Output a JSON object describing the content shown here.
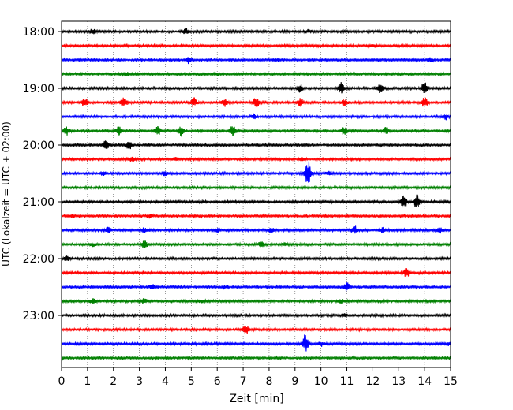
{
  "chart_data": {
    "type": "line",
    "title": "",
    "xlabel": "Zeit  [min]",
    "ylabel": "UTC (Lokalzeit = UTC + 02:00)",
    "xlim": [
      0,
      15
    ],
    "x_ticks": [
      "0",
      "1",
      "2",
      "3",
      "4",
      "5",
      "6",
      "7",
      "8",
      "9",
      "10",
      "11",
      "12",
      "13",
      "14",
      "15"
    ],
    "y_ticks": [
      "18:00",
      "19:00",
      "20:00",
      "21:00",
      "22:00",
      "23:00"
    ],
    "grid": "vertical dotted",
    "trace_colors": [
      "#000000",
      "#ff0000",
      "#0000ff",
      "#008000"
    ],
    "traces": [
      {
        "start": "18:00",
        "color": "#000000",
        "events": [
          [
            1.2,
            3
          ],
          [
            4.8,
            4
          ],
          [
            9.5,
            2
          ]
        ]
      },
      {
        "start": "18:15",
        "color": "#ff0000",
        "events": [
          [
            12.0,
            2
          ]
        ]
      },
      {
        "start": "18:30",
        "color": "#0000ff",
        "events": [
          [
            4.9,
            4
          ],
          [
            8.3,
            2
          ],
          [
            14.2,
            2
          ]
        ]
      },
      {
        "start": "18:45",
        "color": "#008000",
        "events": [
          [
            2.5,
            2
          ],
          [
            6.0,
            2
          ]
        ]
      },
      {
        "start": "19:00",
        "color": "#000000",
        "events": [
          [
            9.2,
            5
          ],
          [
            10.8,
            7
          ],
          [
            12.3,
            6
          ],
          [
            14.0,
            8
          ]
        ]
      },
      {
        "start": "19:15",
        "color": "#ff0000",
        "events": [
          [
            0.9,
            5
          ],
          [
            2.4,
            6
          ],
          [
            5.1,
            6
          ],
          [
            6.3,
            5
          ],
          [
            7.5,
            7
          ],
          [
            9.2,
            5
          ],
          [
            10.9,
            4
          ],
          [
            14.0,
            6
          ]
        ]
      },
      {
        "start": "19:30",
        "color": "#0000ff",
        "events": [
          [
            7.4,
            3
          ],
          [
            14.8,
            3
          ]
        ]
      },
      {
        "start": "19:45",
        "color": "#008000",
        "events": [
          [
            0.2,
            5
          ],
          [
            2.2,
            5
          ],
          [
            3.7,
            6
          ],
          [
            4.6,
            7
          ],
          [
            6.6,
            6
          ],
          [
            10.9,
            6
          ],
          [
            12.5,
            4
          ]
        ]
      },
      {
        "start": "20:00",
        "color": "#000000",
        "events": [
          [
            1.7,
            6
          ],
          [
            2.6,
            5
          ]
        ]
      },
      {
        "start": "20:15",
        "color": "#ff0000",
        "events": [
          [
            2.7,
            3
          ],
          [
            4.4,
            2
          ],
          [
            9.3,
            2
          ]
        ]
      },
      {
        "start": "20:30",
        "color": "#0000ff",
        "events": [
          [
            1.6,
            2
          ],
          [
            4.0,
            2
          ],
          [
            9.5,
            16
          ],
          [
            10.3,
            2
          ]
        ]
      },
      {
        "start": "20:45",
        "color": "#008000",
        "events": []
      },
      {
        "start": "21:00",
        "color": "#000000",
        "events": [
          [
            13.2,
            9
          ],
          [
            13.7,
            9
          ]
        ]
      },
      {
        "start": "21:15",
        "color": "#ff0000",
        "events": [
          [
            0.4,
            2
          ],
          [
            3.4,
            2
          ]
        ]
      },
      {
        "start": "21:30",
        "color": "#0000ff",
        "events": [
          [
            1.8,
            4
          ],
          [
            3.2,
            3
          ],
          [
            6.0,
            3
          ],
          [
            8.1,
            3
          ],
          [
            11.3,
            5
          ],
          [
            12.4,
            3
          ],
          [
            14.6,
            3
          ]
        ]
      },
      {
        "start": "21:45",
        "color": "#008000",
        "events": [
          [
            1.2,
            2
          ],
          [
            3.2,
            4
          ],
          [
            7.7,
            3
          ],
          [
            8.6,
            2
          ]
        ]
      },
      {
        "start": "22:00",
        "color": "#000000",
        "events": [
          [
            0.2,
            3
          ]
        ]
      },
      {
        "start": "22:15",
        "color": "#ff0000",
        "events": [
          [
            13.3,
            5
          ]
        ]
      },
      {
        "start": "22:30",
        "color": "#0000ff",
        "events": [
          [
            3.5,
            3
          ],
          [
            6.3,
            2
          ],
          [
            11.0,
            5
          ]
        ]
      },
      {
        "start": "22:45",
        "color": "#008000",
        "events": [
          [
            1.2,
            3
          ],
          [
            3.2,
            3
          ],
          [
            5.4,
            2
          ],
          [
            10.8,
            3
          ]
        ]
      },
      {
        "start": "23:00",
        "color": "#000000",
        "events": [
          [
            10.9,
            2
          ]
        ]
      },
      {
        "start": "23:15",
        "color": "#ff0000",
        "events": [
          [
            7.1,
            6
          ]
        ]
      },
      {
        "start": "23:30",
        "color": "#0000ff",
        "events": [
          [
            9.4,
            12
          ],
          [
            10.0,
            3
          ],
          [
            15.0,
            3
          ]
        ]
      },
      {
        "start": "23:45",
        "color": "#008000",
        "events": []
      }
    ]
  }
}
